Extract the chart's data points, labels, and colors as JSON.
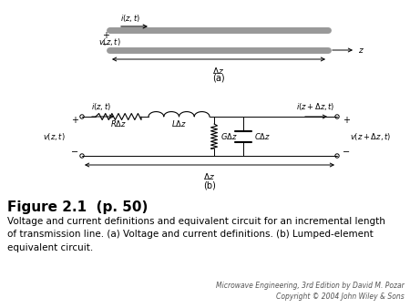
{
  "bg_color": "#ffffff",
  "fig_label": "Figure 2.1  (p. 50)",
  "fig_label_fontsize": 11,
  "caption": "Voltage and current definitions and equivalent circuit for an incremental length\nof transmission line. (a) Voltage and current definitions. (b) Lumped-element\nequivalent circuit.",
  "caption_fontsize": 7.5,
  "copyright": "Microwave Engineering, 3rd Edition by David M. Pozar\nCopyright © 2004 John Wiley & Sons",
  "copyright_fontsize": 5.5,
  "text_color": "#000000",
  "gray_conductor": "#999999"
}
